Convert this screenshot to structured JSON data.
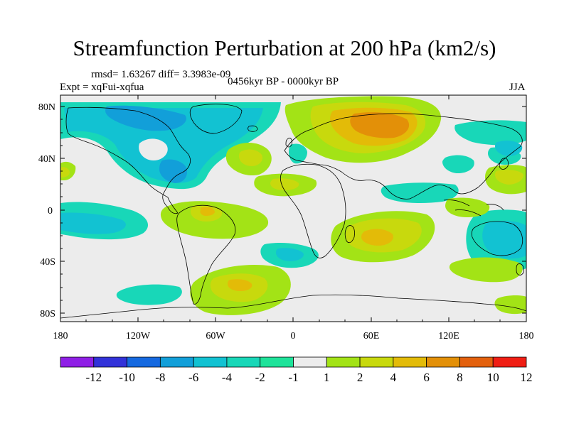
{
  "title": "Streamfunction Perturbation at 200 hPa (km2/s)",
  "stats": "rmsd= 1.63267 diff= 3.3983e-09",
  "experiment": "Expt = xqFui-xqfua",
  "period": "0456kyr BP - 0000kyr BP",
  "season": "JJA",
  "lat_ticks": [
    "80N",
    "40N",
    "0",
    "40S",
    "80S"
  ],
  "lon_ticks": [
    "180",
    "120W",
    "60W",
    "0",
    "60E",
    "120E",
    "180"
  ],
  "colorbar": {
    "labels": [
      "-12",
      "-10",
      "-8",
      "-6",
      "-4",
      "-2",
      "-1",
      "1",
      "2",
      "4",
      "6",
      "8",
      "10",
      "12"
    ],
    "colors": [
      "#8f1fe6",
      "#3232d9",
      "#1569e0",
      "#129fd9",
      "#12c2d2",
      "#18d7b8",
      "#1ee39a",
      "#ececec",
      "#a3e316",
      "#c8d90d",
      "#e3bb08",
      "#e39008",
      "#e3600d",
      "#f01e14"
    ]
  },
  "colors": {
    "ocean_neutral": "#ececec",
    "neg_1": "#1ee39a",
    "neg_2": "#18d7b8",
    "neg_4": "#12c2d2",
    "pos_1": "#a3e316",
    "pos_2": "#c8d90d",
    "pos_4": "#e3bb08",
    "pos_6": "#e39008",
    "coast": "#000000"
  }
}
